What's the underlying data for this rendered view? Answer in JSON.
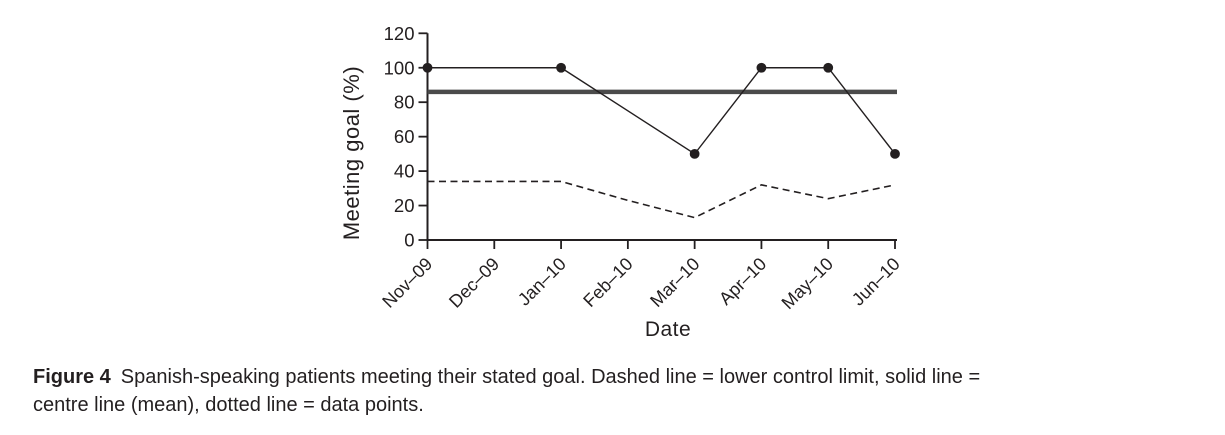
{
  "page": {
    "background": "#ffffff",
    "ink_color": "#231f20"
  },
  "chart_data": {
    "type": "line",
    "title": "",
    "xlabel": "Date",
    "ylabel": "Meeting goal (%)",
    "ylim": [
      0,
      120
    ],
    "yticks": [
      0,
      20,
      40,
      60,
      80,
      100,
      120
    ],
    "categories": [
      "Nov–09",
      "Dec–09",
      "Jan–10",
      "Feb–10",
      "Mar–10",
      "Apr–10",
      "May–10",
      "Jun–10"
    ],
    "grid": false,
    "legend_position": "none (line meanings described in caption)",
    "series": [
      {
        "name": "centre line (mean)",
        "type": "horizontal_reference_line",
        "style": "thick solid",
        "color": "#4b4b4b",
        "value": 86
      },
      {
        "name": "lower control limit",
        "type": "dashed_line",
        "style": "dashed",
        "color": "#231f20",
        "points": [
          [
            "Nov–09",
            34
          ],
          [
            "Dec–09",
            34
          ],
          [
            "Jan–10",
            34
          ],
          [
            "Feb–10",
            23
          ],
          [
            "Mar–10",
            13
          ],
          [
            "Apr–10",
            32
          ],
          [
            "May–10",
            24
          ],
          [
            "Jun–10",
            32
          ]
        ]
      },
      {
        "name": "data points",
        "type": "line_with_markers",
        "style": "thin solid with filled circle markers",
        "color": "#231f20",
        "points": [
          [
            "Nov–09",
            100
          ],
          [
            "Jan–10",
            100
          ],
          [
            "Mar–10",
            50
          ],
          [
            "Apr–10",
            100
          ],
          [
            "May–10",
            100
          ],
          [
            "Jun–10",
            50
          ]
        ]
      }
    ]
  },
  "caption": {
    "label": "Figure 4",
    "line1_rest": "Spanish-speaking patients meeting their stated goal. Dashed line = lower control limit, solid line =",
    "line2": "centre line (mean), dotted line = data points."
  }
}
